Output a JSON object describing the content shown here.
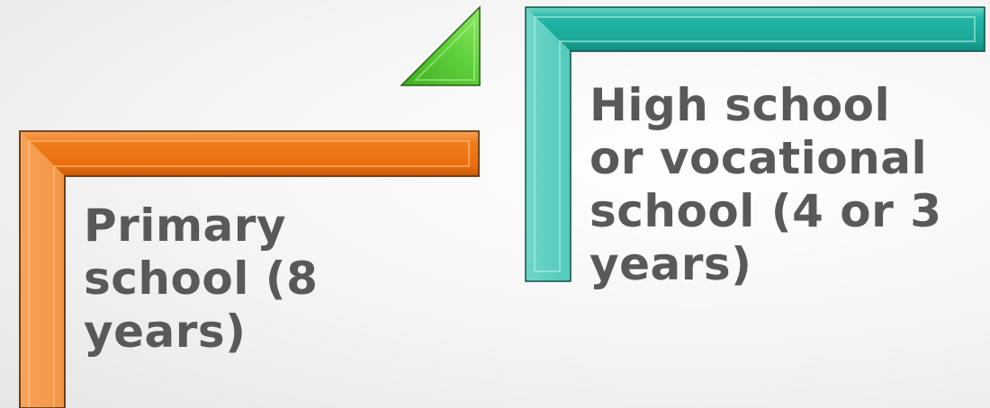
{
  "steps": [
    {
      "id": "primary",
      "label_lines": [
        "Primary",
        "school (8",
        "years)"
      ],
      "color": "#ee7413"
    },
    {
      "id": "high",
      "label_lines": [
        "High school",
        "or vocational",
        "school (4 or 3",
        "years)"
      ],
      "color": "#20b2a0"
    }
  ],
  "arrow": {
    "color": "#5cd03a"
  }
}
